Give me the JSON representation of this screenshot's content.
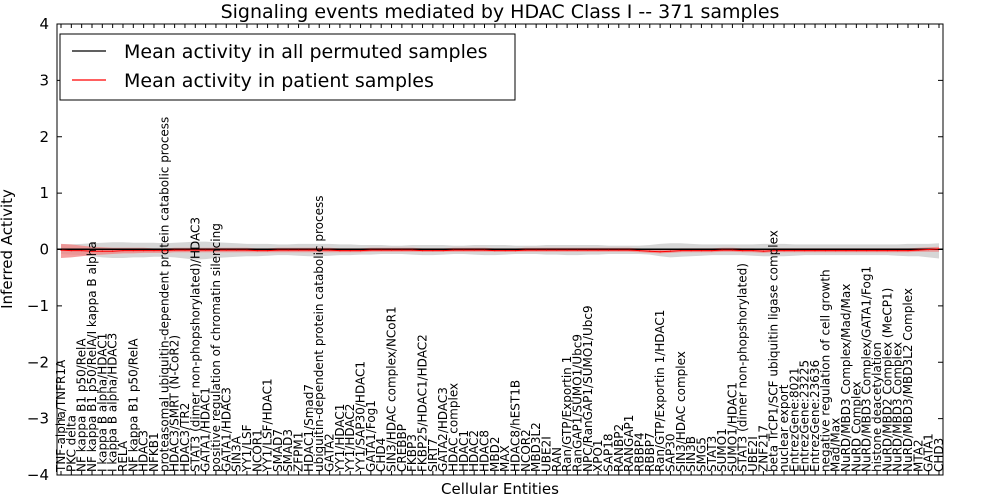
{
  "chart_data": {
    "type": "line",
    "title": "Signaling events mediated by HDAC Class I -- 371 samples",
    "xlabel": "Cellular Entities",
    "ylabel": "Inferred Activity",
    "ylim": [
      -4,
      4
    ],
    "yticks": [
      -4,
      -3,
      -2,
      -1,
      0,
      1,
      2,
      3,
      4
    ],
    "ytick_labels": [
      "−4",
      "−3",
      "−2",
      "−1",
      "0",
      "1",
      "2",
      "3",
      "4"
    ],
    "legend_position": "top-left",
    "grid": false,
    "categories": [
      "TNF-alpha/TNFR1A",
      "PKC delta",
      "NF kappa B1 p50/RelA",
      "NF kappa B1 p50/RelA/I kappa B alpha",
      "I kappa B alpha/HDAC1",
      "I kappa B alpha/HDAC3",
      "RELA",
      "NF kappa B1 p50/RelA",
      "HDAC3",
      "NFKB1",
      "proteasomal ubiquitin-dependent protein catabolic process",
      "HDAC3/SMRT (N-CoR2)",
      "HDAC3/TR2",
      "STAT3 (dimer non-phopshorylated)/HDAC3",
      "GATA1/HDAC1",
      "positive regulation of chromatin silencing",
      "GATA1/HDAC3",
      "SIN3A",
      "YY1/LSF",
      "NCOR1",
      "YY1/LSF/HDAC1",
      "SMAD7",
      "SMAD3",
      "ZFPM1",
      "HDAC1/Smad7",
      "ubiquitin-dependent protein catabolic process",
      "GATA2",
      "YY1/HDAC1",
      "YY1/HDAC2",
      "YY1/SAP30/HDAC1",
      "GATA1/Fog1",
      "CHD4",
      "SIN3/HDAC complex/NCoR1",
      "CREBBP",
      "FKBP3",
      "FKBP25/HDAC1/HDAC2",
      "SIRT7",
      "GATA2/HDAC3",
      "HDAC complex",
      "HDAC1",
      "HDAC2",
      "HDAC8",
      "MBD2",
      "MAX",
      "HDAC8/hEST1B",
      "NCOR2",
      "MBD3L2",
      "UBE2I",
      "RAN",
      "Ran/GTP/Exportin 1",
      "RanGAP1/SUMO1/Ubc9",
      "NPC/RanGAP1/SUMO1/Ubc9",
      "XPO1",
      "SAP18",
      "RANBP2",
      "RANGAP1",
      "RBBP4",
      "RBBP7",
      "Ran/GTP/Exportin 1/HDAC1",
      "SAP30",
      "SIN3/HDAC complex",
      "SIN3B",
      "SMG5",
      "STAT3",
      "SUMO1",
      "SUMO1/HDAC1",
      "STAT3 (dimer non-phopshorylated)",
      "UBE2I",
      "ZNF217",
      "beta TrCP1/SCF ubiquitin ligase complex",
      "nuclear export",
      "EntrezGene:8021",
      "EntrezGene:23225",
      "EntrezGene:23636",
      "negative regulation of cell growth",
      "Mad/Max",
      "NuRD/MBD3 Complex/Mad/Max",
      "NuRD Complex",
      "NuRD/MBD3 Complex/GATA1/Fog1",
      "histone deacetylation",
      "NuRD/MBD2 Complex (MeCP1)",
      "NuRD/MBD3 Complex",
      "NuRD/MBD3/MBD3L2 Complex",
      "MTA2",
      "GATA1",
      "CHD3"
    ],
    "series": [
      {
        "name": "Mean activity in all permuted samples",
        "color": "#000000",
        "values": [
          0,
          0,
          0,
          0,
          0,
          0,
          0,
          0,
          0,
          0,
          0,
          0,
          0,
          0,
          0,
          0,
          0,
          0,
          0,
          0,
          0,
          0,
          0,
          0,
          0,
          0,
          0,
          0,
          0,
          0,
          0,
          0,
          0,
          0,
          0,
          0,
          0,
          0,
          0,
          0,
          0,
          0,
          0,
          0,
          0,
          0,
          0,
          0,
          0,
          0,
          0,
          0,
          0,
          0,
          0,
          0,
          0,
          0,
          0,
          0,
          0,
          0,
          0,
          0,
          0,
          0,
          0,
          0,
          0,
          0,
          0,
          0,
          0,
          0,
          0,
          0,
          0,
          0,
          0,
          0,
          0,
          0,
          0,
          0,
          0,
          0
        ],
        "band": {
          "color": "#bbbbbb",
          "lower": [
            -0.08,
            -0.09,
            -0.1,
            -0.12,
            -0.14,
            -0.15,
            -0.15,
            -0.14,
            -0.14,
            -0.13,
            -0.13,
            -0.14,
            -0.16,
            -0.18,
            -0.17,
            -0.15,
            -0.14,
            -0.13,
            -0.12,
            -0.12,
            -0.11,
            -0.1,
            -0.1,
            -0.11,
            -0.12,
            -0.12,
            -0.11,
            -0.1,
            -0.1,
            -0.09,
            -0.09,
            -0.08,
            -0.08,
            -0.08,
            -0.09,
            -0.1,
            -0.1,
            -0.09,
            -0.08,
            -0.08,
            -0.09,
            -0.1,
            -0.1,
            -0.09,
            -0.08,
            -0.08,
            -0.08,
            -0.09,
            -0.09,
            -0.1,
            -0.1,
            -0.09,
            -0.09,
            -0.08,
            -0.08,
            -0.08,
            -0.08,
            -0.09,
            -0.12,
            -0.14,
            -0.13,
            -0.12,
            -0.11,
            -0.1,
            -0.1,
            -0.1,
            -0.1,
            -0.11,
            -0.12,
            -0.12,
            -0.12,
            -0.11,
            -0.1,
            -0.1,
            -0.1,
            -0.1,
            -0.1,
            -0.1,
            -0.1,
            -0.1,
            -0.1,
            -0.11,
            -0.12,
            -0.12,
            -0.14,
            -0.16
          ],
          "upper": [
            0.09,
            0.09,
            0.1,
            0.11,
            0.12,
            0.13,
            0.13,
            0.12,
            0.12,
            0.12,
            0.11,
            0.12,
            0.13,
            0.14,
            0.14,
            0.13,
            0.12,
            0.11,
            0.1,
            0.1,
            0.1,
            0.09,
            0.09,
            0.1,
            0.1,
            0.1,
            0.1,
            0.09,
            0.09,
            0.08,
            0.08,
            0.08,
            0.07,
            0.07,
            0.08,
            0.08,
            0.08,
            0.08,
            0.07,
            0.07,
            0.08,
            0.08,
            0.08,
            0.08,
            0.07,
            0.07,
            0.07,
            0.08,
            0.08,
            0.08,
            0.08,
            0.08,
            0.08,
            0.07,
            0.07,
            0.07,
            0.07,
            0.08,
            0.1,
            0.11,
            0.11,
            0.1,
            0.09,
            0.09,
            0.09,
            0.09,
            0.09,
            0.09,
            0.1,
            0.1,
            0.1,
            0.09,
            0.09,
            0.09,
            0.09,
            0.09,
            0.09,
            0.09,
            0.09,
            0.09,
            0.09,
            0.09,
            0.1,
            0.1,
            0.1,
            0.11
          ]
        }
      },
      {
        "name": "Mean activity in patient samples",
        "color": "#ff0000",
        "values": [
          -0.01,
          -0.02,
          -0.02,
          -0.03,
          -0.03,
          -0.03,
          -0.02,
          -0.02,
          -0.02,
          -0.02,
          -0.02,
          -0.01,
          -0.01,
          -0.01,
          -0.01,
          -0.01,
          -0.01,
          -0.01,
          -0.01,
          -0.02,
          -0.02,
          -0.01,
          -0.01,
          -0.01,
          -0.01,
          -0.01,
          -0.01,
          -0.02,
          -0.02,
          -0.02,
          -0.01,
          -0.01,
          -0.01,
          -0.01,
          -0.01,
          -0.02,
          -0.02,
          -0.02,
          -0.01,
          -0.01,
          -0.01,
          -0.01,
          -0.02,
          -0.02,
          -0.02,
          -0.01,
          -0.01,
          -0.01,
          -0.01,
          -0.01,
          -0.01,
          -0.01,
          -0.01,
          -0.01,
          -0.01,
          -0.01,
          -0.02,
          -0.03,
          -0.04,
          -0.03,
          -0.02,
          -0.02,
          -0.02,
          -0.02,
          -0.01,
          -0.01,
          -0.02,
          -0.02,
          -0.03,
          -0.02,
          -0.02,
          -0.02,
          -0.02,
          -0.02,
          -0.02,
          -0.02,
          -0.02,
          -0.02,
          -0.02,
          -0.02,
          -0.02,
          -0.02,
          -0.02,
          -0.01,
          0.0,
          0.01
        ],
        "band": {
          "color": "#f08080",
          "lower": [
            -0.15,
            -0.14,
            -0.12,
            -0.1,
            -0.09,
            -0.08,
            -0.07,
            -0.07,
            -0.06,
            -0.06,
            -0.06,
            -0.05,
            -0.05,
            -0.05,
            -0.05,
            -0.05,
            -0.05,
            -0.05,
            -0.05,
            -0.05,
            -0.05,
            -0.05,
            -0.05,
            -0.05,
            -0.05,
            -0.05,
            -0.05,
            -0.05,
            -0.05,
            -0.05,
            -0.04,
            -0.04,
            -0.04,
            -0.04,
            -0.04,
            -0.04,
            -0.04,
            -0.04,
            -0.04,
            -0.04,
            -0.04,
            -0.04,
            -0.04,
            -0.04,
            -0.04,
            -0.04,
            -0.04,
            -0.04,
            -0.04,
            -0.04,
            -0.04,
            -0.04,
            -0.04,
            -0.04,
            -0.04,
            -0.04,
            -0.05,
            -0.06,
            -0.07,
            -0.06,
            -0.05,
            -0.05,
            -0.05,
            -0.05,
            -0.04,
            -0.04,
            -0.05,
            -0.05,
            -0.06,
            -0.05,
            -0.05,
            -0.05,
            -0.05,
            -0.05,
            -0.05,
            -0.05,
            -0.05,
            -0.05,
            -0.05,
            -0.05,
            -0.05,
            -0.05,
            -0.05,
            -0.04,
            -0.04,
            -0.04
          ],
          "upper": [
            0.1,
            0.09,
            0.07,
            0.05,
            0.04,
            0.03,
            0.03,
            0.03,
            0.03,
            0.02,
            0.02,
            0.03,
            0.03,
            0.03,
            0.03,
            0.03,
            0.03,
            0.03,
            0.03,
            0.02,
            0.02,
            0.03,
            0.03,
            0.03,
            0.03,
            0.03,
            0.03,
            0.02,
            0.02,
            0.02,
            0.03,
            0.03,
            0.03,
            0.03,
            0.03,
            0.02,
            0.02,
            0.02,
            0.03,
            0.03,
            0.03,
            0.03,
            0.02,
            0.02,
            0.02,
            0.03,
            0.03,
            0.03,
            0.03,
            0.03,
            0.03,
            0.03,
            0.03,
            0.03,
            0.03,
            0.03,
            0.02,
            0.01,
            0.0,
            0.01,
            0.02,
            0.02,
            0.02,
            0.02,
            0.03,
            0.03,
            0.02,
            0.02,
            0.01,
            0.02,
            0.02,
            0.02,
            0.02,
            0.02,
            0.02,
            0.02,
            0.02,
            0.02,
            0.02,
            0.02,
            0.02,
            0.02,
            0.02,
            0.03,
            0.04,
            0.05
          ]
        }
      }
    ]
  }
}
